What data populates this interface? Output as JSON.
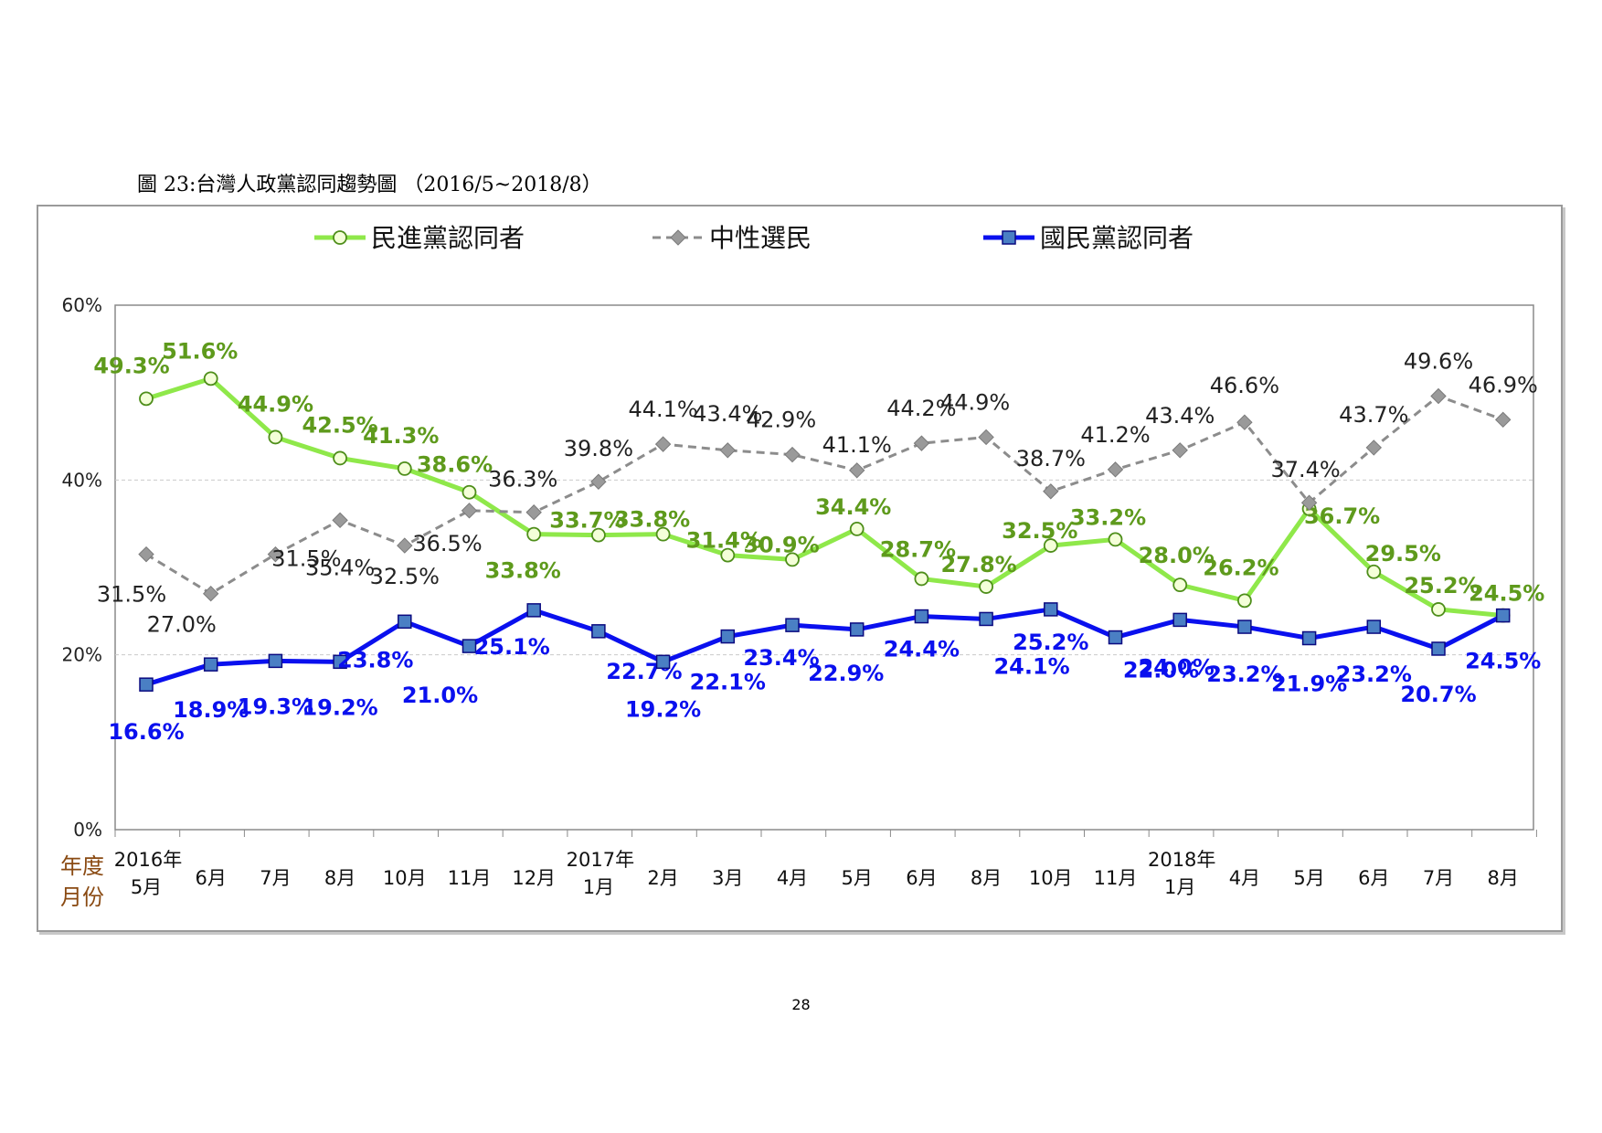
{
  "title": "圖 23:台灣人政黨認同趨勢圖 （2016/5~2018/8）",
  "page_number": "28",
  "axis_caption": [
    "年度",
    "月份"
  ],
  "chart_data": {
    "type": "line",
    "title": "",
    "xlabel": "年度 月份",
    "ylabel": "",
    "ylim": [
      0,
      60
    ],
    "yticks": [
      "0%",
      "20%",
      "40%",
      "60%"
    ],
    "grid": true,
    "legend_position": "top",
    "categories": [
      "5月",
      "6月",
      "7月",
      "8月",
      "10月",
      "11月",
      "12月",
      "1月",
      "2月",
      "3月",
      "4月",
      "5月",
      "6月",
      "8月",
      "10月",
      "11月",
      "1月",
      "4月",
      "5月",
      "6月",
      "7月",
      "8月"
    ],
    "year_labels": [
      {
        "index": 0,
        "label": "2016年"
      },
      {
        "index": 7,
        "label": "2017年"
      },
      {
        "index": 16,
        "label": "2018年"
      }
    ],
    "series": [
      {
        "name": "民進黨認同者",
        "color": "#8fe84a",
        "label_color": "#5e9a1c",
        "line_style": "solid",
        "marker": "circle",
        "values": [
          49.3,
          51.6,
          44.9,
          42.5,
          41.3,
          38.6,
          33.8,
          33.7,
          33.8,
          31.4,
          30.9,
          34.4,
          28.7,
          27.8,
          32.5,
          33.2,
          28.0,
          26.2,
          36.7,
          29.5,
          25.2,
          24.5
        ],
        "labels": [
          "49.3%",
          "51.6%",
          "44.9%",
          "42.5%",
          "41.3%",
          "38.6%",
          "33.8%",
          "33.7%",
          "33.8%",
          "31.4%",
          "30.9%",
          "34.4%",
          "28.7%",
          "27.8%",
          "32.5%",
          "33.2%",
          "28.0%",
          "26.2%",
          "36.7%",
          "29.5%",
          "25.2%",
          "24.5%"
        ]
      },
      {
        "name": "中性選民",
        "color": "#8c8c8c",
        "label_color": "#222222",
        "line_style": "dashed",
        "marker": "diamond",
        "values": [
          31.5,
          27.0,
          31.5,
          35.4,
          32.5,
          36.5,
          36.3,
          39.8,
          44.1,
          43.4,
          42.9,
          41.1,
          44.2,
          44.9,
          38.7,
          41.2,
          43.4,
          46.6,
          37.4,
          43.7,
          49.6,
          46.9
        ],
        "labels": [
          "31.5%",
          "27.0%",
          "31.5%",
          "35.4%",
          "32.5%",
          "36.5%",
          "36.3%",
          "39.8%",
          "44.1%",
          "43.4%",
          "42.9%",
          "41.1%",
          "44.2%",
          "44.9%",
          "38.7%",
          "41.2%",
          "43.4%",
          "46.6%",
          "37.4%",
          "43.7%",
          "49.6%",
          "46.9%"
        ]
      },
      {
        "name": "國民黨認同者",
        "color": "#0a10ee",
        "label_color": "#0a10ee",
        "line_style": "solid",
        "marker": "square",
        "values": [
          16.6,
          18.9,
          19.3,
          19.2,
          23.8,
          21.0,
          25.1,
          22.7,
          19.2,
          22.1,
          23.4,
          22.9,
          24.4,
          24.1,
          25.2,
          22.0,
          24.0,
          23.2,
          21.9,
          23.2,
          20.7,
          24.5
        ],
        "labels": [
          "16.6%",
          "18.9%",
          "19.3%",
          "19.2%",
          "23.8%",
          "21.0%",
          "25.1%",
          "22.7%",
          "19.2%",
          "22.1%",
          "23.4%",
          "22.9%",
          "24.4%",
          "24.1%",
          "25.2%",
          "22.0%",
          "24.0%",
          "23.2%",
          "21.9%",
          "23.2%",
          "20.7%",
          "24.5%"
        ]
      }
    ]
  }
}
